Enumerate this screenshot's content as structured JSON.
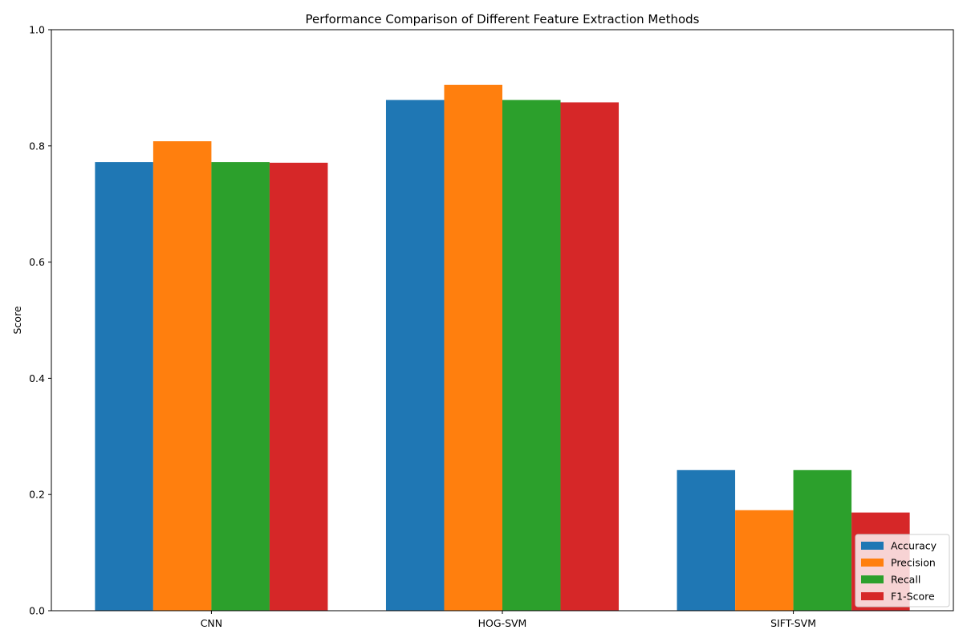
{
  "chart_data": {
    "type": "bar",
    "title": "Performance Comparison of Different Feature Extraction Methods",
    "xlabel": "",
    "ylabel": "Score",
    "categories": [
      "CNN",
      "HOG-SVM",
      "SIFT-SVM"
    ],
    "ylim": [
      0,
      1.0
    ],
    "yticks": [
      "0.0",
      "0.2",
      "0.4",
      "0.6",
      "0.8",
      "1.0"
    ],
    "grid": false,
    "legend_position": "lower-right",
    "series": [
      {
        "name": "Accuracy",
        "color": "#1f77b4",
        "values": [
          0.772,
          0.879,
          0.242
        ]
      },
      {
        "name": "Precision",
        "color": "#ff7f0e",
        "values": [
          0.808,
          0.905,
          0.173
        ]
      },
      {
        "name": "Recall",
        "color": "#2ca02c",
        "values": [
          0.772,
          0.879,
          0.242
        ]
      },
      {
        "name": "F1-Score",
        "color": "#d62728",
        "values": [
          0.771,
          0.875,
          0.169
        ]
      }
    ]
  }
}
